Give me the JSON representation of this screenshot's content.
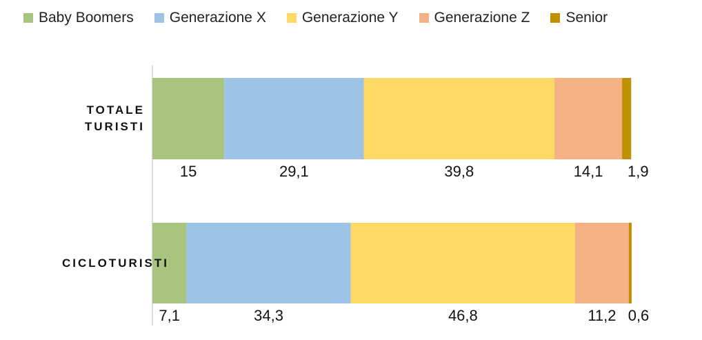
{
  "chart_data": {
    "type": "stacked_bar_horizontal",
    "categories": [
      "TOTALE TURISTI",
      "CICLOTURISTI"
    ],
    "xlim": [
      0,
      100
    ],
    "series": [
      {
        "name": "Baby Boomers",
        "color": "#a9c47f",
        "values": [
          15,
          7.1
        ],
        "value_labels": [
          "15",
          "7,1"
        ]
      },
      {
        "name": "Generazione X",
        "color": "#9dc3e6",
        "values": [
          29.1,
          34.3
        ],
        "value_labels": [
          "29,1",
          "34,3"
        ]
      },
      {
        "name": "Generazione Y",
        "color": "#ffd966",
        "values": [
          39.8,
          46.8
        ],
        "value_labels": [
          "39,8",
          "46,8"
        ]
      },
      {
        "name": "Generazione Z",
        "color": "#f4b183",
        "values": [
          14.1,
          11.2
        ],
        "value_labels": [
          "14,1",
          "11,2"
        ]
      },
      {
        "name": "Senior",
        "color": "#bf9000",
        "values": [
          1.9,
          0.6
        ],
        "value_labels": [
          "1,9",
          "0,6"
        ]
      }
    ]
  }
}
